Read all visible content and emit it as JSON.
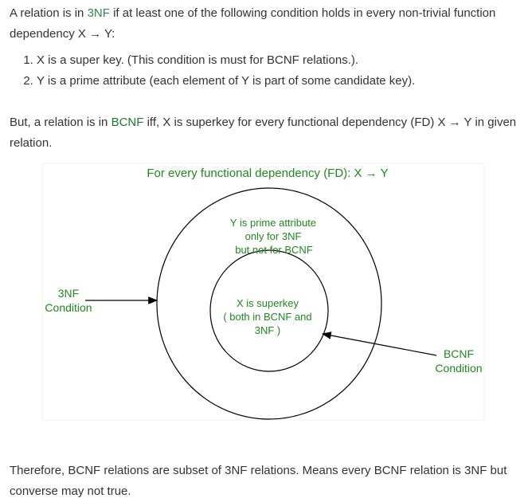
{
  "intro": {
    "pre": "A relation is in ",
    "term": "3NF",
    "post": " if at least one of the following condition holds in every non-trivial function dependency X → Y:"
  },
  "conditions": [
    "X is a super key. (This condition is must for BCNF relations.).",
    "Y is a prime attribute (each element of Y is part of some candidate key)."
  ],
  "bcnf_def": {
    "pre": "But, a relation is in ",
    "term": "BCNF",
    "post": " iff, X is superkey for every functional dependency (FD) X → Y in given relation."
  },
  "diagram": {
    "title": "For every functional dependency (FD): X → Y",
    "outer_label": [
      "Y is prime attribute",
      "only for 3NF",
      "but not for BCNF"
    ],
    "inner_label": [
      "X is superkey",
      "( both in BCNF and",
      "3NF )"
    ],
    "left_label": [
      "3NF",
      "Condition"
    ],
    "right_label": [
      "BCNF",
      "Condition"
    ],
    "text_color": "#1e8a1e"
  },
  "conclusion": "Therefore, BCNF relations are subset of 3NF relations. Means every BCNF relation is 3NF but converse may not true."
}
